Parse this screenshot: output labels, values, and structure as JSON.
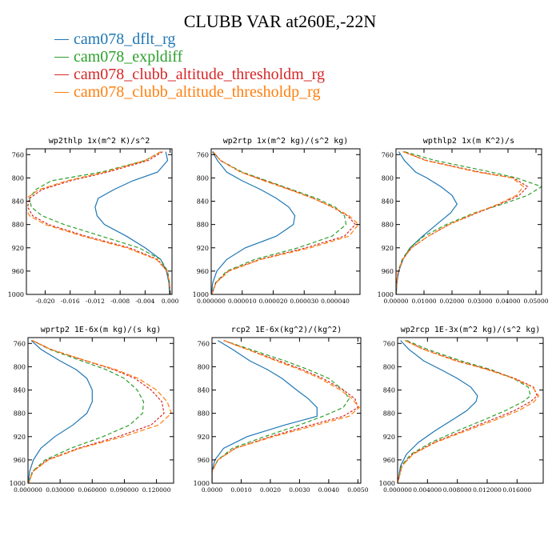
{
  "figure": {
    "title": "CLUBB VAR at260E,-22N",
    "legend": [
      {
        "label": "cam078_dflt_rg",
        "color": "#1f77b4",
        "dash": ""
      },
      {
        "label": "cam078_expldiff",
        "color": "#2ca02c",
        "dash": "5,3"
      },
      {
        "label": "cam078_clubb_altitude_thresholdm_rg",
        "color": "#d62728",
        "dash": "3,2"
      },
      {
        "label": "cam078_clubb_altitude_thresholdp_rg",
        "color": "#ff7f0e",
        "dash": "6,3"
      }
    ]
  },
  "chart_data": [
    {
      "type": "line",
      "title": "wp2thlp  1x(m^2 K)/s^2",
      "xlim": [
        -0.023,
        0.0003
      ],
      "ylim": [
        1000,
        750
      ],
      "xticks": [
        -0.02,
        -0.016,
        -0.012,
        -0.008,
        -0.004,
        0.0
      ],
      "xtick_labels": [
        "-0.020",
        "-0.016",
        "-0.012",
        "-0.008",
        "-0.004",
        "0.000"
      ],
      "yticks": [
        760,
        800,
        840,
        880,
        920,
        960,
        1000
      ],
      "grid": false,
      "y": [
        755,
        770,
        790,
        805,
        820,
        835,
        850,
        865,
        880,
        900,
        920,
        940,
        960,
        980,
        1000
      ],
      "series": [
        {
          "name": "cam078_dflt_rg",
          "x": [
            -0.0007,
            -0.0004,
            -0.002,
            -0.006,
            -0.009,
            -0.0115,
            -0.012,
            -0.0117,
            -0.0105,
            -0.007,
            -0.004,
            -0.0015,
            -0.0006,
            -0.0002,
            -0.0001
          ]
        },
        {
          "name": "cam078_expldiff",
          "x": [
            -0.0015,
            -0.004,
            -0.011,
            -0.019,
            -0.0215,
            -0.0225,
            -0.0222,
            -0.0205,
            -0.017,
            -0.011,
            -0.005,
            -0.0015,
            -0.0004,
            -0.0001,
            0.0
          ]
        },
        {
          "name": "cam078_clubb_altitude_thresholdm_rg",
          "x": [
            -0.0012,
            -0.0035,
            -0.01,
            -0.016,
            -0.0205,
            -0.0225,
            -0.0228,
            -0.022,
            -0.0195,
            -0.0135,
            -0.0065,
            -0.002,
            -0.0005,
            -0.0001,
            0.0
          ]
        },
        {
          "name": "cam078_clubb_altitude_thresholdp_rg",
          "x": [
            -0.0015,
            -0.004,
            -0.0105,
            -0.0165,
            -0.021,
            -0.023,
            -0.0232,
            -0.0225,
            -0.02,
            -0.014,
            -0.007,
            -0.0022,
            -0.0005,
            -0.0001,
            0.0
          ]
        }
      ]
    },
    {
      "type": "line",
      "title": "wp2rtp  1x(m^2 kg)/(s^2 kg)",
      "xlim": [
        0.0,
        4.8e-05
      ],
      "ylim": [
        1000,
        750
      ],
      "xticks": [
        0.0,
        1e-05,
        2e-05,
        3e-05,
        4e-05
      ],
      "xtick_labels": [
        "0.000000",
        "0.000010",
        "0.000020",
        "0.000030",
        "0.000040"
      ],
      "yticks": [
        760,
        800,
        840,
        880,
        920,
        960,
        1000
      ],
      "grid": false,
      "y": [
        755,
        770,
        790,
        805,
        820,
        835,
        850,
        865,
        880,
        900,
        920,
        940,
        960,
        980,
        1000
      ],
      "series": [
        {
          "name": "cam078_dflt_rg",
          "x": [
            4e-07,
            2e-06,
            5e-06,
            1e-05,
            1.6e-05,
            2.1e-05,
            2.5e-05,
            2.7e-05,
            2.65e-05,
            2.1e-05,
            1.1e-05,
            5e-06,
            1.8e-06,
            5e-07,
            1e-07
          ]
        },
        {
          "name": "cam078_expldiff",
          "x": [
            6e-07,
            3e-06,
            1e-05,
            1.8e-05,
            2.6e-05,
            3.4e-05,
            4e-05,
            4.3e-05,
            4.35e-05,
            3.9e-05,
            2.8e-05,
            1.4e-05,
            5e-06,
            1.4e-06,
            2e-07
          ]
        },
        {
          "name": "cam078_clubb_altitude_thresholdm_rg",
          "x": [
            6e-07,
            3e-06,
            9.5e-06,
            1.75e-05,
            2.55e-05,
            3.3e-05,
            3.9e-05,
            4.4e-05,
            4.65e-05,
            4.3e-05,
            3.05e-05,
            1.55e-05,
            5.5e-06,
            1.5e-06,
            2e-07
          ]
        },
        {
          "name": "cam078_clubb_altitude_thresholdp_rg",
          "x": [
            6e-07,
            3e-06,
            9.5e-06,
            1.7e-05,
            2.52e-05,
            3.28e-05,
            3.92e-05,
            4.45e-05,
            4.75e-05,
            4.45e-05,
            3.2e-05,
            1.6e-05,
            5.7e-06,
            1.6e-06,
            2e-07
          ]
        }
      ]
    },
    {
      "type": "line",
      "title": "wpthlp2  1x(m K^2)/s",
      "xlim": [
        0.0,
        0.052
      ],
      "ylim": [
        1000,
        750
      ],
      "xticks": [
        0.0,
        0.01,
        0.02,
        0.03,
        0.04,
        0.05
      ],
      "xtick_labels": [
        "0.00000",
        "0.01000",
        "0.02000",
        "0.03000",
        "0.04000",
        "0.05000"
      ],
      "yticks": [
        760,
        800,
        840,
        880,
        920,
        960,
        1000
      ],
      "grid": false,
      "y": [
        755,
        770,
        790,
        800,
        815,
        830,
        845,
        860,
        880,
        900,
        920,
        940,
        960,
        980,
        1000
      ],
      "series": [
        {
          "name": "cam078_dflt_rg",
          "x": [
            0.001,
            0.003,
            0.007,
            0.011,
            0.016,
            0.02,
            0.0218,
            0.0195,
            0.0145,
            0.0095,
            0.005,
            0.0025,
            0.001,
            0.0003,
            0.0001
          ]
        },
        {
          "name": "cam078_expldiff",
          "x": [
            0.003,
            0.014,
            0.034,
            0.043,
            0.052,
            0.047,
            0.038,
            0.028,
            0.018,
            0.01,
            0.005,
            0.0022,
            0.0008,
            0.0002,
            0.0
          ]
        },
        {
          "name": "cam078_clubb_altitude_thresholdm_rg",
          "x": [
            0.0025,
            0.011,
            0.03,
            0.042,
            0.047,
            0.044,
            0.037,
            0.029,
            0.019,
            0.0115,
            0.0055,
            0.0024,
            0.0008,
            0.0002,
            0.0
          ]
        },
        {
          "name": "cam078_clubb_altitude_thresholdp_rg",
          "x": [
            0.0025,
            0.0105,
            0.029,
            0.0415,
            0.0455,
            0.043,
            0.0365,
            0.0285,
            0.019,
            0.0115,
            0.0055,
            0.0024,
            0.0008,
            0.0002,
            0.0
          ]
        }
      ]
    },
    {
      "type": "line",
      "title": "wprtp2  1E-6x(m kg)/(s kg)",
      "xlim": [
        0.0,
        0.136
      ],
      "ylim": [
        1000,
        750
      ],
      "xticks": [
        0.0,
        0.03,
        0.06,
        0.09,
        0.12
      ],
      "xtick_labels": [
        "0.000000",
        "0.030000",
        "0.060000",
        "0.090000",
        "0.120000"
      ],
      "yticks": [
        760,
        800,
        840,
        880,
        920,
        960,
        1000
      ],
      "grid": false,
      "y": [
        755,
        770,
        790,
        805,
        820,
        840,
        860,
        880,
        900,
        920,
        940,
        960,
        980,
        1000
      ],
      "series": [
        {
          "name": "cam078_dflt_rg",
          "x": [
            0.003,
            0.012,
            0.03,
            0.045,
            0.055,
            0.06,
            0.06,
            0.055,
            0.042,
            0.025,
            0.012,
            0.005,
            0.0015,
            0.0003
          ]
        },
        {
          "name": "cam078_expldiff",
          "x": [
            0.004,
            0.02,
            0.05,
            0.073,
            0.09,
            0.102,
            0.108,
            0.107,
            0.095,
            0.07,
            0.04,
            0.016,
            0.004,
            0.0006
          ]
        },
        {
          "name": "cam078_clubb_altitude_thresholdm_rg",
          "x": [
            0.004,
            0.021,
            0.054,
            0.08,
            0.1,
            0.115,
            0.125,
            0.127,
            0.115,
            0.084,
            0.047,
            0.018,
            0.0045,
            0.0006
          ]
        },
        {
          "name": "cam078_clubb_altitude_thresholdp_rg",
          "x": [
            0.004,
            0.021,
            0.055,
            0.082,
            0.103,
            0.12,
            0.13,
            0.134,
            0.122,
            0.089,
            0.049,
            0.019,
            0.0047,
            0.0006
          ]
        }
      ]
    },
    {
      "type": "line",
      "title": "rcp2  1E-6x(kg^2)/(kg^2)",
      "xlim": [
        0.0,
        0.0051
      ],
      "ylim": [
        1000,
        750
      ],
      "xticks": [
        0.0,
        0.001,
        0.002,
        0.003,
        0.004,
        0.005
      ],
      "xtick_labels": [
        "0.0000",
        "0.0010",
        "0.0020",
        "0.0030",
        "0.0040",
        "0.0050"
      ],
      "yticks": [
        760,
        800,
        840,
        880,
        920,
        960,
        1000
      ],
      "grid": false,
      "y": [
        755,
        770,
        790,
        805,
        820,
        840,
        855,
        870,
        885,
        900,
        920,
        940,
        960,
        980,
        1000
      ],
      "series": [
        {
          "name": "cam078_dflt_rg",
          "x": [
            0.0002,
            0.0007,
            0.0013,
            0.0019,
            0.0024,
            0.0029,
            0.0033,
            0.0036,
            0.0036,
            0.0025,
            0.0012,
            0.0004,
            0.0001,
            0.0,
            0.0
          ]
        },
        {
          "name": "cam078_expldiff",
          "x": [
            0.0004,
            0.0013,
            0.0025,
            0.0033,
            0.004,
            0.0045,
            0.0047,
            0.0045,
            0.0038,
            0.003,
            0.0018,
            0.0007,
            0.0002,
            0.0,
            0.0
          ]
        },
        {
          "name": "cam078_clubb_altitude_thresholdm_rg",
          "x": [
            0.0004,
            0.0012,
            0.0023,
            0.0031,
            0.0038,
            0.0045,
            0.0049,
            0.005,
            0.0045,
            0.0034,
            0.002,
            0.0008,
            0.0002,
            0.0,
            0.0
          ]
        },
        {
          "name": "cam078_clubb_altitude_thresholdp_rg",
          "x": [
            0.0004,
            0.0012,
            0.0022,
            0.003,
            0.0037,
            0.0044,
            0.0048,
            0.00505,
            0.0047,
            0.0036,
            0.0021,
            0.0008,
            0.0002,
            0.0,
            0.0
          ]
        }
      ]
    },
    {
      "type": "line",
      "title": "wp2rcp  1E-3x(m^2 kg)/(s^2 kg)",
      "xlim": [
        0.0,
        0.0195
      ],
      "ylim": [
        1000,
        750
      ],
      "xticks": [
        0.0,
        0.004,
        0.008,
        0.012,
        0.016
      ],
      "xtick_labels": [
        "0.000000",
        "0.004000",
        "0.008000",
        "0.012000",
        "0.016000"
      ],
      "yticks": [
        760,
        800,
        840,
        880,
        920,
        960,
        1000
      ],
      "grid": false,
      "y": [
        755,
        770,
        790,
        805,
        820,
        835,
        850,
        860,
        875,
        890,
        910,
        930,
        950,
        970,
        1000
      ],
      "series": [
        {
          "name": "cam078_dflt_rg",
          "x": [
            0.0004,
            0.0015,
            0.0035,
            0.0058,
            0.008,
            0.0098,
            0.0107,
            0.0105,
            0.0093,
            0.0075,
            0.005,
            0.0028,
            0.0012,
            0.0004,
            0.0
          ]
        },
        {
          "name": "cam078_expldiff",
          "x": [
            0.0012,
            0.004,
            0.0085,
            0.0125,
            0.0155,
            0.0175,
            0.0178,
            0.0168,
            0.0145,
            0.0118,
            0.008,
            0.0045,
            0.0018,
            0.0005,
            0.0
          ]
        },
        {
          "name": "cam078_clubb_altitude_thresholdm_rg",
          "x": [
            0.001,
            0.0035,
            0.008,
            0.0122,
            0.0157,
            0.0182,
            0.0187,
            0.0178,
            0.0157,
            0.0128,
            0.0088,
            0.0049,
            0.002,
            0.0006,
            0.0
          ]
        },
        {
          "name": "cam078_clubb_altitude_thresholdp_rg",
          "x": [
            0.001,
            0.0034,
            0.0078,
            0.012,
            0.0155,
            0.0181,
            0.0189,
            0.0183,
            0.0163,
            0.0134,
            0.0092,
            0.0051,
            0.0021,
            0.0006,
            0.0
          ]
        }
      ]
    }
  ]
}
